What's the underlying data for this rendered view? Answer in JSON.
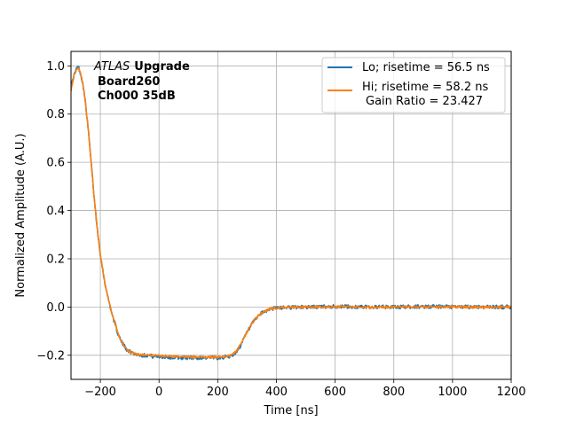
{
  "chart_data": {
    "type": "line",
    "xlabel": "Time [ns]",
    "ylabel": "Normalized Amplitude (A.U.)",
    "xlim": [
      -300,
      1200
    ],
    "ylim": [
      -0.3,
      1.06
    ],
    "xticks": [
      -200,
      0,
      200,
      400,
      600,
      800,
      1000,
      1200
    ],
    "xtick_labels": [
      "−200",
      "0",
      "200",
      "400",
      "600",
      "800",
      "1000",
      "1200"
    ],
    "yticks": [
      -0.2,
      0.0,
      0.2,
      0.4,
      0.6,
      0.8,
      1.0
    ],
    "ytick_labels": [
      "−0.2",
      "0.0",
      "0.2",
      "0.4",
      "0.6",
      "0.8",
      "1.0"
    ],
    "grid": true,
    "legend_position": "top-right",
    "annotation": {
      "italic": "ATLAS",
      "bold": "Upgrade",
      "line2": "Board260",
      "line3": "Ch000 35dB"
    },
    "series": [
      {
        "name": "Lo; risetime = 56.5 ns",
        "color": "#1f77b4",
        "x": [
          -300,
          -290,
          -280,
          -275,
          -270,
          -260,
          -250,
          -240,
          -230,
          -220,
          -210,
          -200,
          -190,
          -180,
          -170,
          -160,
          -150,
          -140,
          -130,
          -120,
          -110,
          -100,
          -80,
          -60,
          -40,
          -20,
          0,
          50,
          100,
          150,
          200,
          220,
          240,
          250,
          260,
          270,
          280,
          290,
          300,
          320,
          340,
          360,
          380,
          400,
          450,
          500,
          600,
          700,
          800,
          900,
          1000,
          1100,
          1200
        ],
        "y": [
          0.91,
          0.96,
          0.99,
          0.995,
          0.98,
          0.93,
          0.84,
          0.72,
          0.58,
          0.44,
          0.32,
          0.22,
          0.14,
          0.07,
          0.02,
          -0.03,
          -0.07,
          -0.11,
          -0.14,
          -0.16,
          -0.175,
          -0.185,
          -0.195,
          -0.2,
          -0.2,
          -0.205,
          -0.205,
          -0.21,
          -0.21,
          -0.21,
          -0.21,
          -0.208,
          -0.205,
          -0.2,
          -0.19,
          -0.175,
          -0.155,
          -0.13,
          -0.105,
          -0.065,
          -0.035,
          -0.018,
          -0.008,
          -0.004,
          -0.001,
          0.0,
          0.002,
          0.0,
          0.0,
          0.002,
          0.0,
          0.001,
          0.0
        ]
      },
      {
        "name": "Hi; risetime = 58.2 ns",
        "name_line2": "Gain Ratio = 23.427",
        "color": "#ff7f0e",
        "x": [
          -300,
          -290,
          -280,
          -275,
          -270,
          -260,
          -250,
          -240,
          -230,
          -220,
          -210,
          -200,
          -190,
          -180,
          -170,
          -160,
          -150,
          -140,
          -130,
          -120,
          -110,
          -100,
          -80,
          -60,
          -40,
          -20,
          0,
          50,
          100,
          150,
          200,
          220,
          240,
          250,
          260,
          270,
          280,
          290,
          300,
          320,
          340,
          360,
          380,
          400,
          450,
          500,
          600,
          700,
          800,
          900,
          1000,
          1100,
          1200
        ],
        "y": [
          0.9,
          0.96,
          0.99,
          0.995,
          0.98,
          0.93,
          0.84,
          0.72,
          0.58,
          0.44,
          0.32,
          0.22,
          0.14,
          0.07,
          0.02,
          -0.03,
          -0.07,
          -0.11,
          -0.14,
          -0.16,
          -0.175,
          -0.185,
          -0.195,
          -0.198,
          -0.2,
          -0.2,
          -0.203,
          -0.205,
          -0.207,
          -0.207,
          -0.207,
          -0.205,
          -0.202,
          -0.197,
          -0.187,
          -0.172,
          -0.152,
          -0.128,
          -0.103,
          -0.063,
          -0.034,
          -0.017,
          -0.008,
          -0.004,
          -0.001,
          0.0,
          0.001,
          0.0,
          0.0,
          0.001,
          0.0,
          0.0,
          0.0
        ]
      }
    ]
  }
}
